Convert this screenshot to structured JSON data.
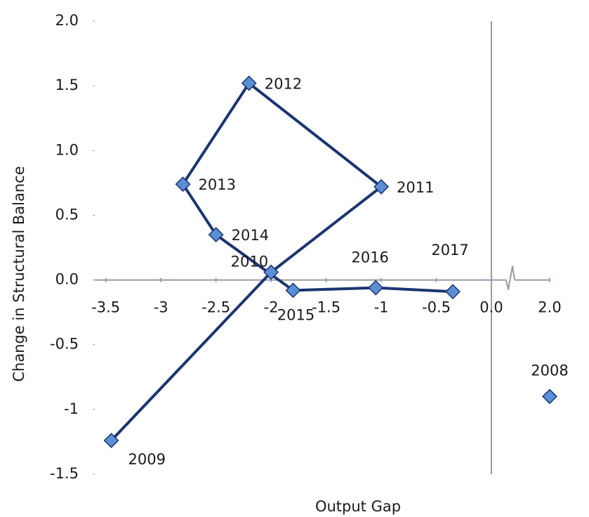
{
  "chart_data": {
    "type": "scatter",
    "x_label": "Output Gap",
    "y_label": "Change in Structural Balance",
    "xlim": [
      -3.6,
      2.0
    ],
    "xticks": [
      -3.5,
      -3.0,
      -2.5,
      -2.0,
      -1.5,
      -1.0,
      -0.5,
      {
        "value": 0,
        "label": "0.0"
      },
      {
        "value": 2,
        "label": "2.0"
      }
    ],
    "x_axis_break": true,
    "ylim": [
      -1.5,
      2.0
    ],
    "yticks": [
      -1.5,
      -1.0,
      -0.5,
      {
        "value": 0,
        "label": "0.0"
      },
      0.5,
      {
        "value": 1,
        "label": "1.0"
      },
      1.5,
      {
        "value": 2,
        "label": "2.0"
      }
    ],
    "grid": false,
    "series": [
      {
        "connected": false,
        "color": "#5a8fd4",
        "line_color": "#1b3570",
        "labels": [
          "2008"
        ],
        "x": [
          2.0
        ],
        "y": [
          -0.9
        ]
      },
      {
        "connected": true,
        "color": "#5a8fd4",
        "line_color": "#1b3570",
        "labels": [
          "2009",
          "2010",
          "2011",
          "2012",
          "2013",
          "2014",
          "2015",
          "2016",
          "2017"
        ],
        "x": [
          -3.45,
          -2.0,
          -1.0,
          -2.2,
          -2.8,
          -2.5,
          -1.8,
          -1.05,
          -0.35
        ],
        "y": [
          -1.24,
          0.06,
          0.72,
          1.52,
          0.74,
          0.35,
          -0.08,
          -0.06,
          -0.09
        ]
      }
    ]
  }
}
